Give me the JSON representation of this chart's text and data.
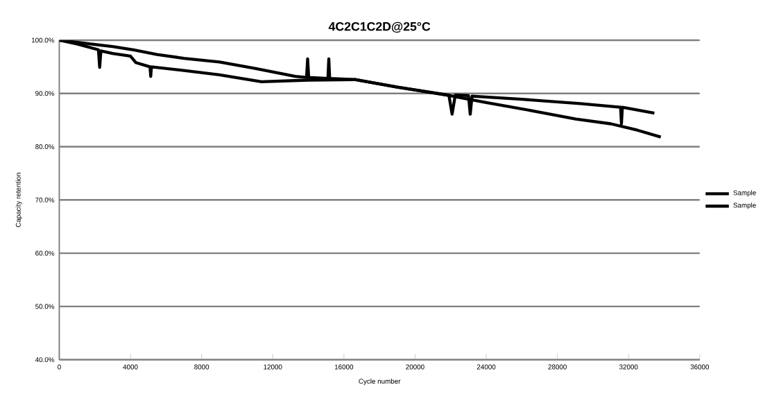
{
  "chart_data": {
    "type": "line",
    "title": "4C2C1C2D@25°C",
    "xlabel": "Cycle number",
    "ylabel": "Capacity retention",
    "xlim": [
      0,
      36000
    ],
    "xticks": [
      0,
      4000,
      8000,
      12000,
      16000,
      20000,
      24000,
      28000,
      32000,
      36000
    ],
    "ylim": [
      40,
      100
    ],
    "yticks": [
      {
        "value": 40,
        "label": "40.0%"
      },
      {
        "value": 50,
        "label": "50.0%"
      },
      {
        "value": 60,
        "label": "60.0%"
      },
      {
        "value": 70,
        "label": "70.0%"
      },
      {
        "value": 80,
        "label": "80.0%"
      },
      {
        "value": 90,
        "label": "90.0%"
      },
      {
        "value": 100,
        "label": "100.0%"
      }
    ],
    "grid": "y",
    "legend": "right",
    "marker": "none",
    "line_style": "solid",
    "series": [
      {
        "name": "Sample",
        "color": "#000000",
        "x": [
          0,
          1000,
          2000,
          3000,
          4170,
          5500,
          7000,
          9000,
          11000,
          13270,
          13900,
          13960,
          14020,
          15100,
          15150,
          15200,
          16660,
          19000,
          21940,
          24000,
          26500,
          29030,
          31000,
          32500,
          33810
        ],
        "values": [
          100.0,
          99.6,
          99.2,
          98.8,
          98.2,
          97.3,
          96.6,
          95.9,
          94.7,
          93.2,
          93.0,
          96.5,
          93.0,
          92.8,
          96.5,
          92.8,
          92.6,
          91.2,
          89.6,
          88.3,
          86.8,
          85.2,
          84.3,
          83.1,
          81.8
        ]
      },
      {
        "name": "Sample",
        "color": "#000000",
        "x": [
          0,
          1000,
          2200,
          2270,
          2340,
          3000,
          4000,
          4300,
          5100,
          5140,
          5180,
          7000,
          9000,
          11370,
          14000,
          16660,
          19000,
          21900,
          22080,
          22260,
          23000,
          23100,
          23200,
          26000,
          29280,
          31550,
          31600,
          31650,
          33450
        ],
        "values": [
          100.0,
          99.3,
          98.2,
          94.9,
          98.0,
          97.5,
          97.0,
          95.8,
          95.0,
          93.2,
          95.0,
          94.3,
          93.5,
          92.2,
          92.5,
          92.6,
          91.2,
          89.7,
          86.1,
          89.7,
          89.6,
          86.1,
          89.5,
          88.9,
          88.1,
          87.4,
          84.3,
          87.4,
          86.3
        ]
      }
    ]
  }
}
